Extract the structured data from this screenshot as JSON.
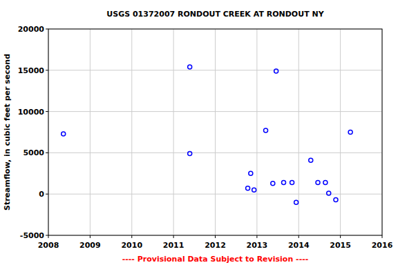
{
  "chart_data": {
    "type": "scatter",
    "title": "USGS 01372007 RONDOUT CREEK AT RONDOUT NY",
    "y_label": "Streamflow, in cubic feet per second",
    "annotation": "---- Provisional Data Subject to Revision ----",
    "x": [
      2008.36,
      2011.39,
      2011.39,
      2012.78,
      2012.85,
      2012.93,
      2013.21,
      2013.38,
      2013.46,
      2013.64,
      2013.84,
      2013.94,
      2014.29,
      2014.46,
      2014.64,
      2014.72,
      2014.89,
      2015.24
    ],
    "values": [
      7300,
      15400,
      4900,
      700,
      2500,
      500,
      7700,
      1300,
      14900,
      1400,
      1400,
      -1000,
      4100,
      1400,
      1400,
      100,
      -700,
      7500
    ],
    "color": "#0000ff",
    "marker": "open-circle",
    "xlim": [
      2008,
      2016
    ],
    "ylim": [
      -5000,
      20000
    ],
    "xticks": [
      2008,
      2009,
      2010,
      2011,
      2012,
      2013,
      2014,
      2015,
      2016
    ],
    "yticks": [
      -5000,
      0,
      5000,
      10000,
      15000,
      20000
    ],
    "grid": true
  }
}
